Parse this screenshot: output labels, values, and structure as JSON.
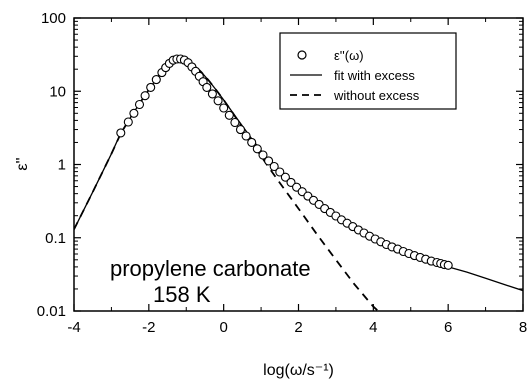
{
  "chart_data": {
    "type": "scatter",
    "xlabel": "log(ω/s⁻¹)",
    "ylabel": "ε''",
    "xlim": [
      -4,
      8
    ],
    "ylim": [
      0.01,
      100
    ],
    "yscale": "log",
    "xticks": [
      -4,
      -2,
      0,
      2,
      4,
      6,
      8
    ],
    "xtick_labels": [
      "-4",
      "-2",
      "0",
      "2",
      "4",
      "6",
      "8"
    ],
    "yticks": [
      0.01,
      0.1,
      1,
      10,
      100
    ],
    "ytick_labels": [
      "0.01",
      "0.1",
      "1",
      "10",
      "100"
    ],
    "grid": false,
    "legend_position": "top-right",
    "legend": [
      {
        "label": "ε''(ω)",
        "style": "open-circle"
      },
      {
        "label": "fit with excess",
        "style": "solid-line"
      },
      {
        "label": "without excess",
        "style": "dashed-line"
      }
    ],
    "annotations": [
      "propylene carbonate",
      "158 K"
    ],
    "series": [
      {
        "name": "ε''(ω)",
        "kind": "markers",
        "x": [
          -2.75,
          -2.55,
          -2.4,
          -2.25,
          -2.1,
          -1.95,
          -1.8,
          -1.65,
          -1.55,
          -1.45,
          -1.35,
          -1.25,
          -1.15,
          -1.05,
          -0.95,
          -0.85,
          -0.75,
          -0.65,
          -0.55,
          -0.45,
          -0.3,
          -0.15,
          0.0,
          0.15,
          0.3,
          0.45,
          0.6,
          0.75,
          0.9,
          1.05,
          1.2,
          1.35,
          1.5,
          1.65,
          1.8,
          1.95,
          2.1,
          2.25,
          2.4,
          2.55,
          2.7,
          2.85,
          3.0,
          3.15,
          3.3,
          3.45,
          3.6,
          3.75,
          3.9,
          4.05,
          4.2,
          4.35,
          4.5,
          4.65,
          4.8,
          4.95,
          5.1,
          5.25,
          5.4,
          5.55,
          5.7,
          5.8,
          5.9,
          6.0
        ],
        "y": [
          2.7,
          3.8,
          5.0,
          6.6,
          8.7,
          11.3,
          14.4,
          18.0,
          21.0,
          24.0,
          26.5,
          27.6,
          27.6,
          26.6,
          24.5,
          21.5,
          18.7,
          16.0,
          13.5,
          11.3,
          9.2,
          7.4,
          5.9,
          4.7,
          3.75,
          3.0,
          2.45,
          2.0,
          1.64,
          1.35,
          1.12,
          0.94,
          0.79,
          0.67,
          0.57,
          0.49,
          0.425,
          0.37,
          0.325,
          0.285,
          0.25,
          0.222,
          0.198,
          0.176,
          0.158,
          0.142,
          0.128,
          0.116,
          0.105,
          0.096,
          0.088,
          0.081,
          0.075,
          0.07,
          0.065,
          0.061,
          0.057,
          0.054,
          0.051,
          0.048,
          0.046,
          0.0445,
          0.043,
          0.042
        ]
      },
      {
        "name": "fit with excess",
        "kind": "line",
        "dash": "solid",
        "x": [
          -4.0,
          -3.5,
          -3.0,
          -2.75,
          -2.5,
          -2.25,
          -2.0,
          -1.75,
          -1.5,
          -1.3,
          -1.15,
          -1.0,
          -0.8,
          -0.6,
          -0.4,
          -0.2,
          0.0,
          0.25,
          0.5,
          0.75,
          1.0,
          1.25,
          1.5,
          1.75,
          2.0,
          2.5,
          3.0,
          3.5,
          4.0,
          4.5,
          5.0,
          5.5,
          6.0,
          6.5,
          7.0,
          7.5,
          8.0
        ],
        "y": [
          0.13,
          0.42,
          1.4,
          2.7,
          4.3,
          6.8,
          10.5,
          16.0,
          22.5,
          26.8,
          27.7,
          26.8,
          23.0,
          18.3,
          14.0,
          10.4,
          7.6,
          5.05,
          3.35,
          2.25,
          1.55,
          1.1,
          0.8,
          0.6,
          0.45,
          0.28,
          0.185,
          0.128,
          0.093,
          0.07,
          0.055,
          0.046,
          0.04,
          0.034,
          0.028,
          0.023,
          0.019
        ]
      },
      {
        "name": "without excess",
        "kind": "line",
        "dash": "dashed",
        "x": [
          -4.0,
          -3.5,
          -3.0,
          -2.75,
          -2.5,
          -2.25,
          -2.0,
          -1.75,
          -1.5,
          -1.3,
          -1.15,
          -1.0,
          -0.8,
          -0.6,
          -0.4,
          -0.2,
          0.0,
          0.25,
          0.5,
          0.75,
          1.0,
          1.25,
          1.5,
          2.0,
          2.5,
          3.0,
          3.5,
          4.0,
          4.3
        ],
        "y": [
          0.13,
          0.42,
          1.4,
          2.65,
          4.3,
          6.8,
          10.5,
          16.0,
          22.5,
          26.8,
          27.7,
          26.8,
          23.0,
          18.3,
          14.0,
          10.4,
          7.6,
          5.0,
          3.2,
          2.05,
          1.3,
          0.85,
          0.56,
          0.25,
          0.11,
          0.05,
          0.023,
          0.0115,
          0.0083
        ]
      }
    ]
  }
}
